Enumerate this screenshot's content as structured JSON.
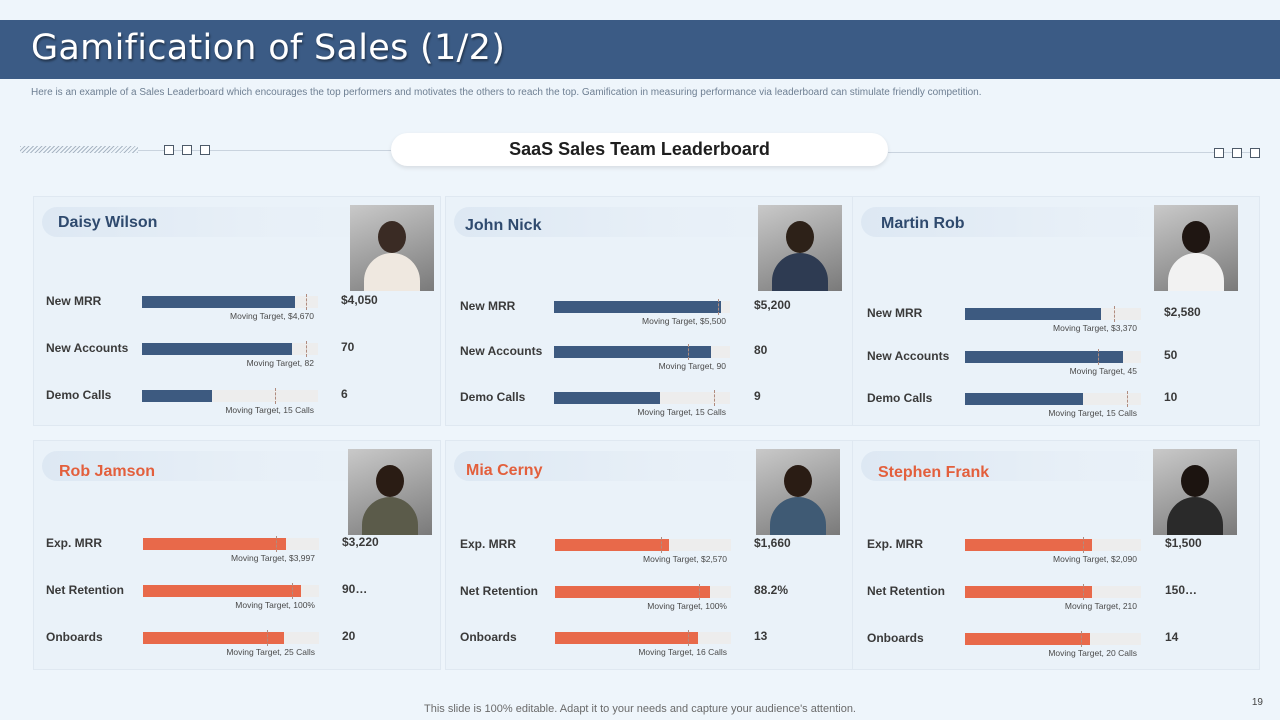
{
  "title": "Gamification of Sales (1/2)",
  "subtitle": "Here is an example of a Sales Leaderboard which encourages the top performers and motivates the others to reach the top. Gamification in measuring performance via leaderboard can stimulate friendly competition.",
  "leaderboard_title": "SaaS Sales Team Leaderboard",
  "colors": {
    "header": "#3b5b85",
    "blue_bar": "#3d5a80",
    "orange_bar": "#e8694a",
    "blue_name": "#2f4a6e",
    "orange_name": "#e35f3c"
  },
  "cards": [
    {
      "name": "Daisy Wilson",
      "color": "blue",
      "metrics": [
        {
          "label": "New MRR",
          "value": "$4,050",
          "target": "Moving Target, $4,670",
          "progress": 0.87,
          "target_pos": 1.0
        },
        {
          "label": "New Accounts",
          "value": "70",
          "target": "Moving Target, 82",
          "progress": 0.85,
          "target_pos": 1.0
        },
        {
          "label": "Demo Calls",
          "value": "6",
          "target": "Moving Target, 15 Calls",
          "progress": 0.4,
          "target_pos": 0.81
        }
      ]
    },
    {
      "name": "John Nick",
      "color": "blue",
      "metrics": [
        {
          "label": "New MRR",
          "value": "$5,200",
          "target": "Moving Target, $5,500",
          "progress": 0.95,
          "target_pos": 1.0
        },
        {
          "label": "New Accounts",
          "value": "80",
          "target": "Moving Target, 90",
          "progress": 0.89,
          "target_pos": 0.82
        },
        {
          "label": "Demo Calls",
          "value": "9",
          "target": "Moving Target, 15 Calls",
          "progress": 0.6,
          "target_pos": 0.98
        }
      ]
    },
    {
      "name": "Martin Rob",
      "color": "blue",
      "metrics": [
        {
          "label": "New MRR",
          "value": "$2,580",
          "target": "Moving Target, $3,370",
          "progress": 0.77,
          "target_pos": 0.91
        },
        {
          "label": "New Accounts",
          "value": "50",
          "target": "Moving Target, 45",
          "progress": 0.9,
          "target_pos": 0.81
        },
        {
          "label": "Demo Calls",
          "value": "10",
          "target": "Moving Target, 15 Calls",
          "progress": 0.67,
          "target_pos": 0.99
        }
      ]
    },
    {
      "name": "Rob Jamson",
      "color": "orange",
      "metrics": [
        {
          "label": "Exp. MRR",
          "value": "$3,220",
          "target": "Moving Target, $3,997",
          "progress": 0.81,
          "target_pos": 0.81
        },
        {
          "label": "Net Retention",
          "value": "90…",
          "target": "Moving Target, 100%",
          "progress": 0.9,
          "target_pos": 0.91
        },
        {
          "label": "Onboards",
          "value": "20",
          "target": "Moving Target, 25 Calls",
          "progress": 0.8,
          "target_pos": 0.76
        }
      ]
    },
    {
      "name": "Mia Cerny",
      "color": "orange",
      "metrics": [
        {
          "label": "Exp. MRR",
          "value": "$1,660",
          "target": "Moving Target, $2,570",
          "progress": 0.65,
          "target_pos": 0.65
        },
        {
          "label": "Net Retention",
          "value": "88.2%",
          "target": "Moving Target, 100%",
          "progress": 0.88,
          "target_pos": 0.88
        },
        {
          "label": "Onboards",
          "value": "13",
          "target": "Moving Target, 16 Calls",
          "progress": 0.81,
          "target_pos": 0.81
        }
      ]
    },
    {
      "name": "Stephen Frank",
      "color": "orange",
      "metrics": [
        {
          "label": "Exp. MRR",
          "value": "$1,500",
          "target": "Moving Target, $2,090",
          "progress": 0.72,
          "target_pos": 0.72
        },
        {
          "label": "Net Retention",
          "value": "150…",
          "target": "Moving Target, 210",
          "progress": 0.72,
          "target_pos": 0.72
        },
        {
          "label": "Onboards",
          "value": "14",
          "target": "Moving Target, 20 Calls",
          "progress": 0.71,
          "target_pos": 0.71
        }
      ]
    }
  ],
  "footer": "This slide is 100% editable. Adapt it to your needs and capture your audience's attention.",
  "page_number": "19"
}
